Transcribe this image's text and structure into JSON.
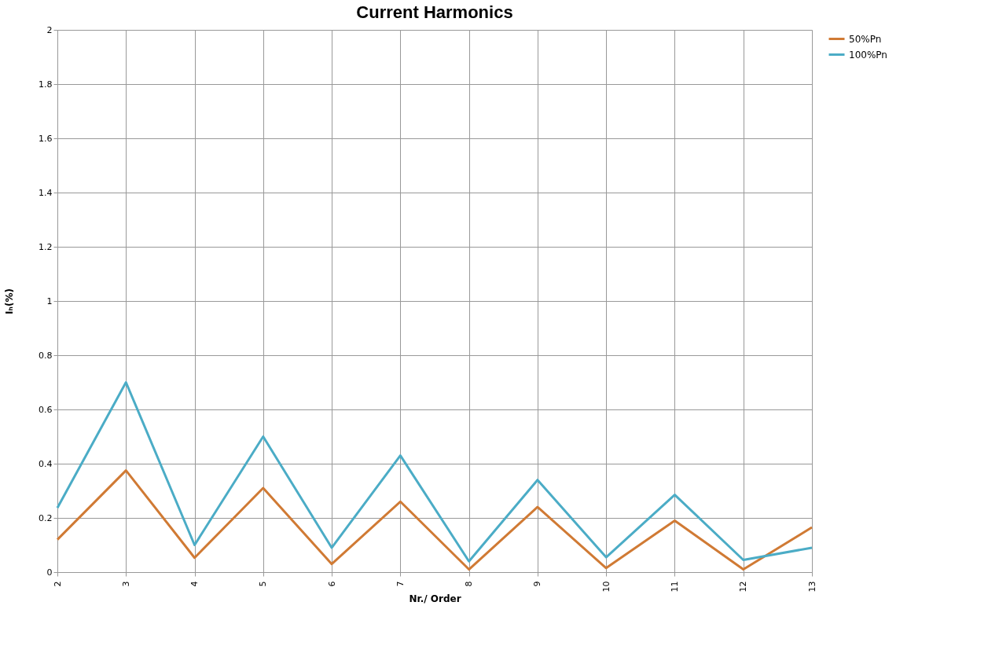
{
  "chart_data": {
    "type": "line",
    "title": "Current Harmonics",
    "xlabel": "Nr./ Order",
    "ylabel": "Iₕ(%)",
    "categories": [
      "2",
      "3",
      "4",
      "5",
      "6",
      "7",
      "8",
      "9",
      "10",
      "11",
      "12",
      "13"
    ],
    "series": [
      {
        "name": "50%Pn",
        "color": "#d07a34",
        "values": [
          0.12,
          0.375,
          0.053,
          0.31,
          0.03,
          0.26,
          0.01,
          0.24,
          0.015,
          0.19,
          0.01,
          0.165
        ]
      },
      {
        "name": "100%Pn",
        "color": "#4bacc6",
        "values": [
          0.237,
          0.7,
          0.1,
          0.5,
          0.09,
          0.43,
          0.04,
          0.34,
          0.055,
          0.285,
          0.045,
          0.09
        ]
      }
    ],
    "ylim": [
      0,
      2
    ],
    "yticks": [
      0,
      0.2,
      0.4,
      0.6,
      0.8,
      1,
      1.2,
      1.4,
      1.6,
      1.8,
      2
    ],
    "grid": true,
    "legend": "right",
    "marker": "none",
    "line_style": "solid"
  }
}
